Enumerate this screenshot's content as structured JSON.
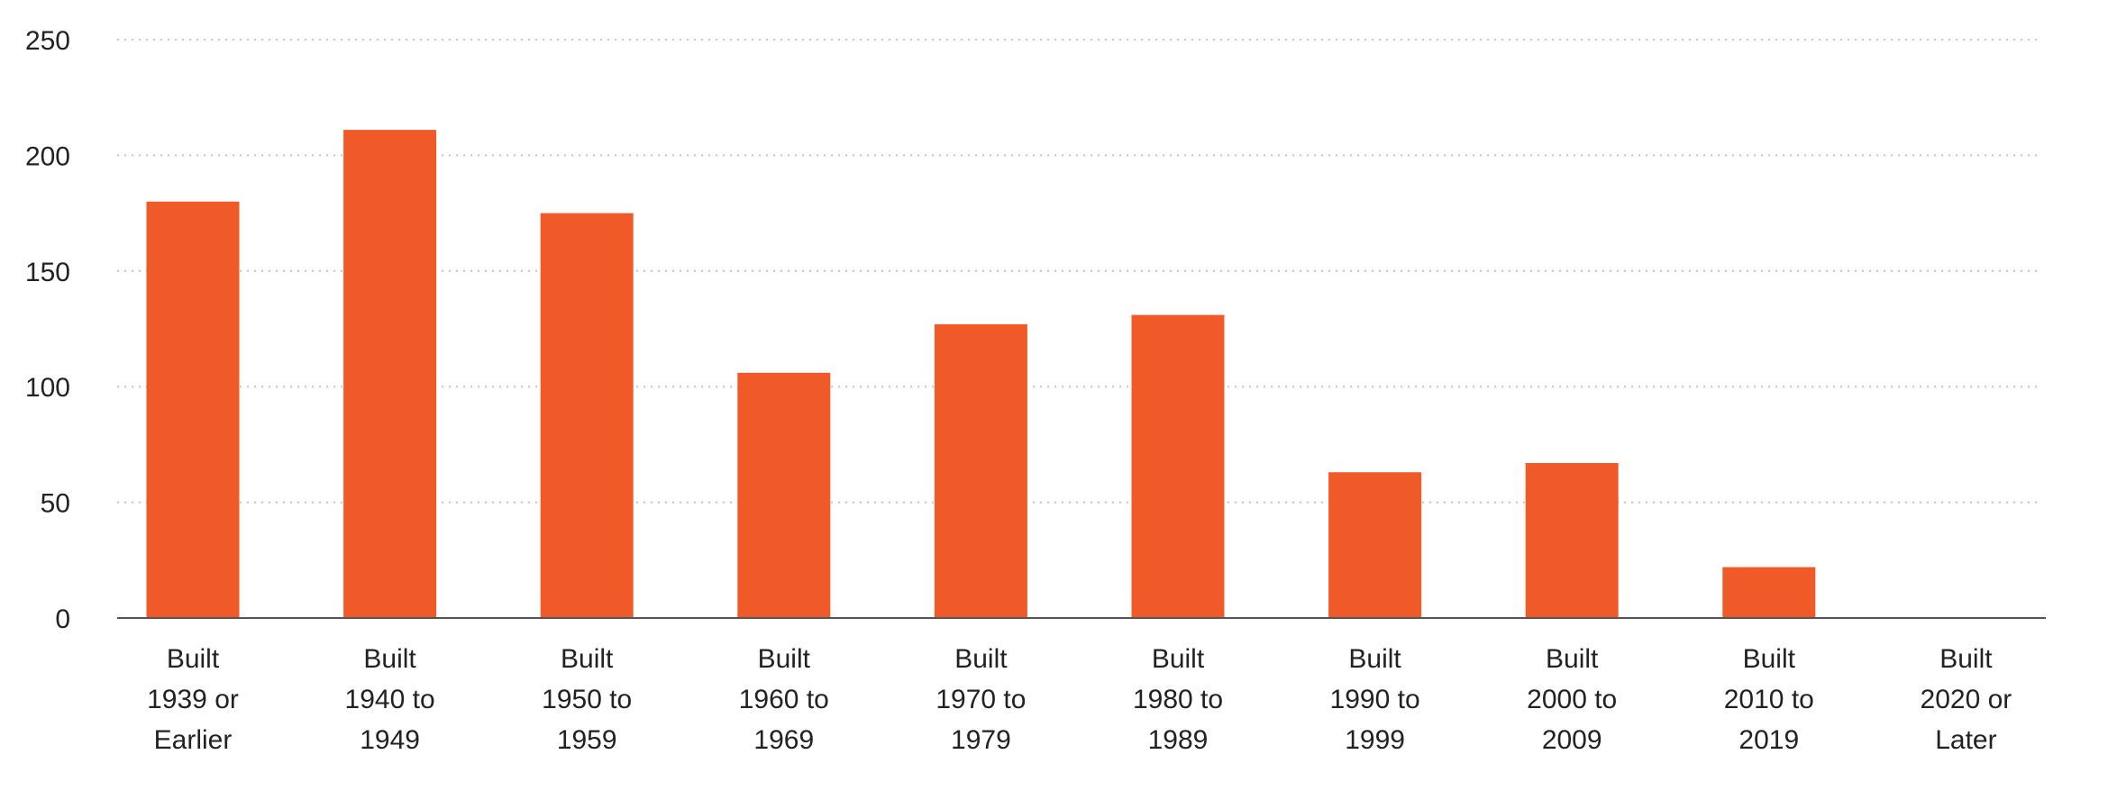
{
  "chart_data": {
    "type": "bar",
    "title": "",
    "xlabel": "",
    "ylabel": "",
    "ylim": [
      0,
      250
    ],
    "yticks": [
      "0",
      "50",
      "100",
      "150",
      "200",
      "250"
    ],
    "ytick_values": [
      0,
      50,
      100,
      150,
      200,
      250
    ],
    "grid": "horizontal-dotted",
    "legend": "none",
    "bar_color": "#f05a28",
    "categories": [
      [
        "Built",
        "1939 or",
        "Earlier"
      ],
      [
        "Built",
        "1940 to",
        "1949"
      ],
      [
        "Built",
        "1950 to",
        "1959"
      ],
      [
        "Built",
        "1960 to",
        "1969"
      ],
      [
        "Built",
        "1970 to",
        "1979"
      ],
      [
        "Built",
        "1980 to",
        "1989"
      ],
      [
        "Built",
        "1990 to",
        "1999"
      ],
      [
        "Built",
        "2000 to",
        "2009"
      ],
      [
        "Built",
        "2010 to",
        "2019"
      ],
      [
        "Built",
        "2020 or",
        "Later"
      ]
    ],
    "values": [
      180,
      211,
      175,
      106,
      127,
      131,
      63,
      67,
      22,
      0
    ]
  }
}
